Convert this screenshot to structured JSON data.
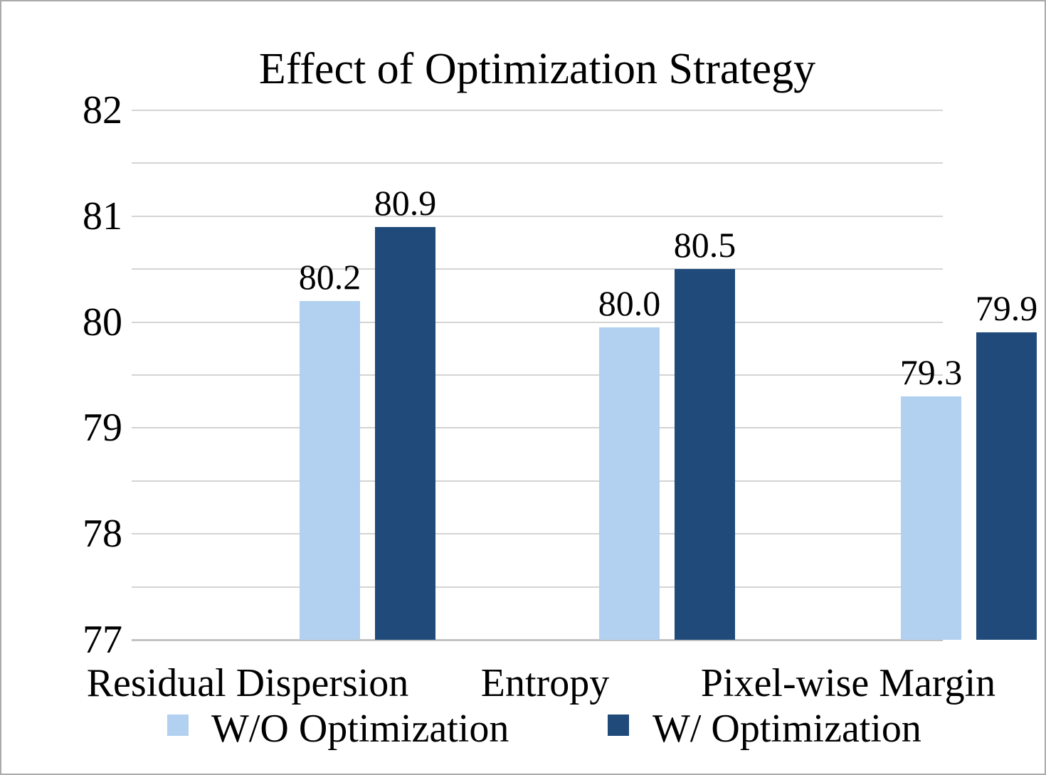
{
  "chart_data": {
    "type": "bar",
    "title": "Effect of Optimization Strategy",
    "categories": [
      "Residual Dispersion",
      "Entropy",
      "Pixel-wise Margin"
    ],
    "series": [
      {
        "name": "W/O Optimization",
        "color": "#b2d0ef",
        "values": [
          80.2,
          79.95,
          79.3
        ],
        "labels": [
          "80.2",
          "80.0",
          "79.3"
        ]
      },
      {
        "name": "W/ Optimization",
        "color": "#1f4a7a",
        "values": [
          80.9,
          80.5,
          79.9
        ],
        "labels": [
          "80.9",
          "80.5",
          "79.9"
        ]
      }
    ],
    "ylim": [
      77,
      82
    ],
    "ytick_step": 1,
    "yticks": [
      "77",
      "78",
      "79",
      "80",
      "81",
      "82"
    ],
    "gridline_step": 0.5,
    "grid": true,
    "legend_position": "bottom",
    "gridline_color": "#d4d4d4",
    "axis_line_color": "#c2c2c2",
    "text_color": "#000000"
  }
}
